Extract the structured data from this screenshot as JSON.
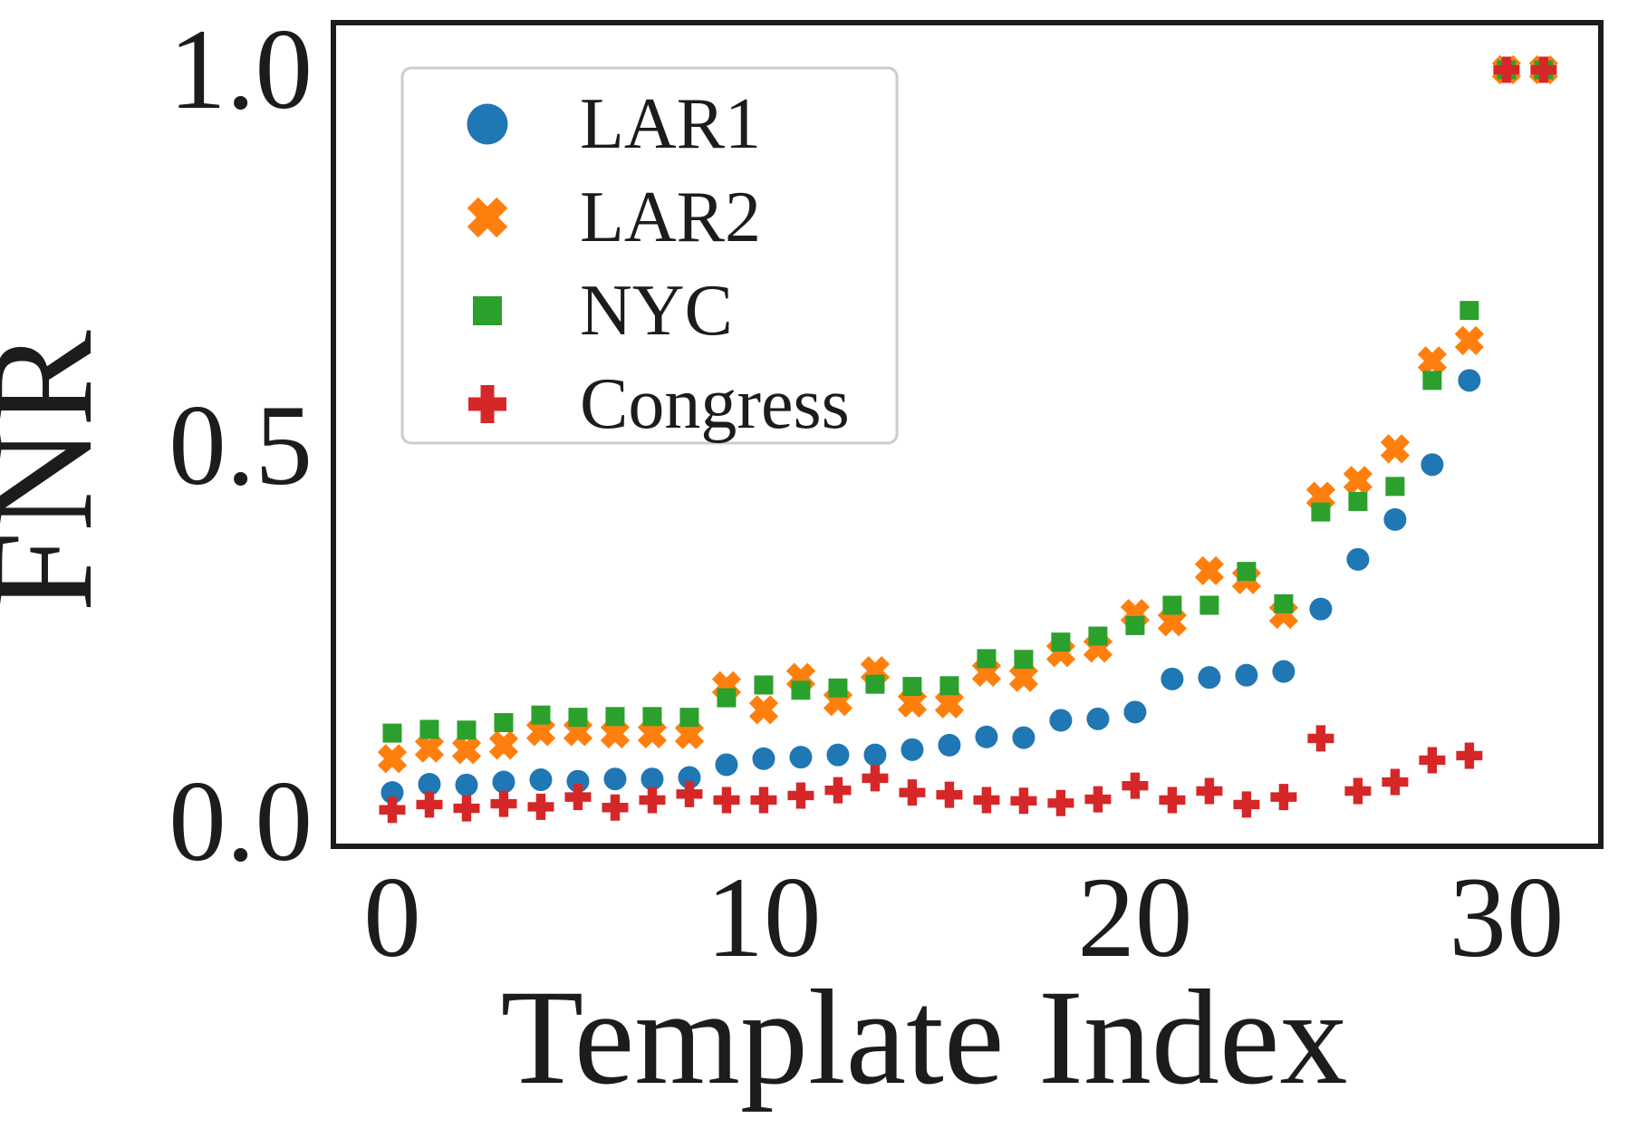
{
  "chart_data": {
    "type": "scatter",
    "title": "",
    "xlabel": "Template Index",
    "ylabel": "FNR",
    "xlim": [
      -1.585,
      32.54
    ],
    "ylim": [
      -0.0325,
      1.0627
    ],
    "xticks": [
      0,
      10,
      20,
      30
    ],
    "xtick_labels": [
      "0",
      "10",
      "20",
      "30"
    ],
    "yticks": [
      0.0,
      0.5,
      1.0
    ],
    "ytick_labels": [
      "0.0",
      "0.5",
      "1.0"
    ],
    "grid": false,
    "legend_position": "upper-left",
    "axis_color": "#1c1c1c",
    "series": [
      {
        "name": "LAR1",
        "marker": "circle",
        "color": "#1f77b4",
        "x": [
          0,
          1,
          2,
          3,
          4,
          5,
          6,
          7,
          8,
          9,
          10,
          11,
          12,
          13,
          14,
          15,
          16,
          17,
          18,
          19,
          20,
          21,
          22,
          23,
          24,
          25,
          26,
          27,
          28,
          29
        ],
        "y": [
          0.039,
          0.05,
          0.049,
          0.053,
          0.056,
          0.054,
          0.057,
          0.057,
          0.059,
          0.076,
          0.084,
          0.086,
          0.089,
          0.089,
          0.096,
          0.102,
          0.113,
          0.112,
          0.135,
          0.137,
          0.146,
          0.19,
          0.192,
          0.195,
          0.2,
          0.283,
          0.349,
          0.402,
          0.475,
          0.587
        ]
      },
      {
        "name": "LAR2",
        "marker": "x",
        "color": "#ff7f0e",
        "x": [
          0,
          1,
          2,
          3,
          4,
          5,
          6,
          7,
          8,
          9,
          10,
          11,
          12,
          13,
          14,
          15,
          16,
          17,
          18,
          19,
          20,
          21,
          22,
          23,
          24,
          25,
          26,
          27,
          28,
          29,
          30,
          31
        ],
        "y": [
          0.084,
          0.098,
          0.096,
          0.102,
          0.12,
          0.12,
          0.117,
          0.117,
          0.116,
          0.181,
          0.149,
          0.192,
          0.16,
          0.201,
          0.158,
          0.157,
          0.199,
          0.192,
          0.225,
          0.231,
          0.277,
          0.266,
          0.334,
          0.322,
          0.276,
          0.433,
          0.454,
          0.496,
          0.613,
          0.64,
          1.0,
          1.0
        ]
      },
      {
        "name": "NYC",
        "marker": "square",
        "color": "#2ca02c",
        "x": [
          0,
          1,
          2,
          3,
          4,
          5,
          6,
          7,
          8,
          9,
          10,
          11,
          12,
          13,
          14,
          15,
          16,
          17,
          18,
          19,
          20,
          21,
          22,
          23,
          24,
          25,
          26,
          27,
          28,
          29,
          30,
          31
        ],
        "y": [
          0.118,
          0.123,
          0.122,
          0.132,
          0.142,
          0.139,
          0.14,
          0.14,
          0.139,
          0.165,
          0.182,
          0.175,
          0.178,
          0.183,
          0.18,
          0.181,
          0.217,
          0.216,
          0.239,
          0.247,
          0.261,
          0.288,
          0.288,
          0.333,
          0.29,
          0.412,
          0.426,
          0.446,
          0.587,
          0.68,
          1.0,
          1.0
        ]
      },
      {
        "name": "Congress",
        "marker": "plus",
        "color": "#d62728",
        "x": [
          0,
          1,
          2,
          3,
          4,
          5,
          6,
          7,
          8,
          9,
          10,
          11,
          12,
          13,
          14,
          15,
          16,
          17,
          18,
          19,
          20,
          21,
          22,
          23,
          24,
          25,
          26,
          27,
          28,
          29,
          30,
          31
        ],
        "y": [
          0.016,
          0.023,
          0.018,
          0.024,
          0.02,
          0.033,
          0.019,
          0.029,
          0.037,
          0.029,
          0.029,
          0.035,
          0.042,
          0.058,
          0.039,
          0.036,
          0.029,
          0.028,
          0.025,
          0.03,
          0.048,
          0.029,
          0.041,
          0.023,
          0.033,
          0.111,
          0.041,
          0.053,
          0.082,
          0.088,
          1.0,
          1.0
        ]
      }
    ],
    "legend_entries": [
      "LAR1",
      "LAR2",
      "NYC",
      "Congress"
    ]
  }
}
